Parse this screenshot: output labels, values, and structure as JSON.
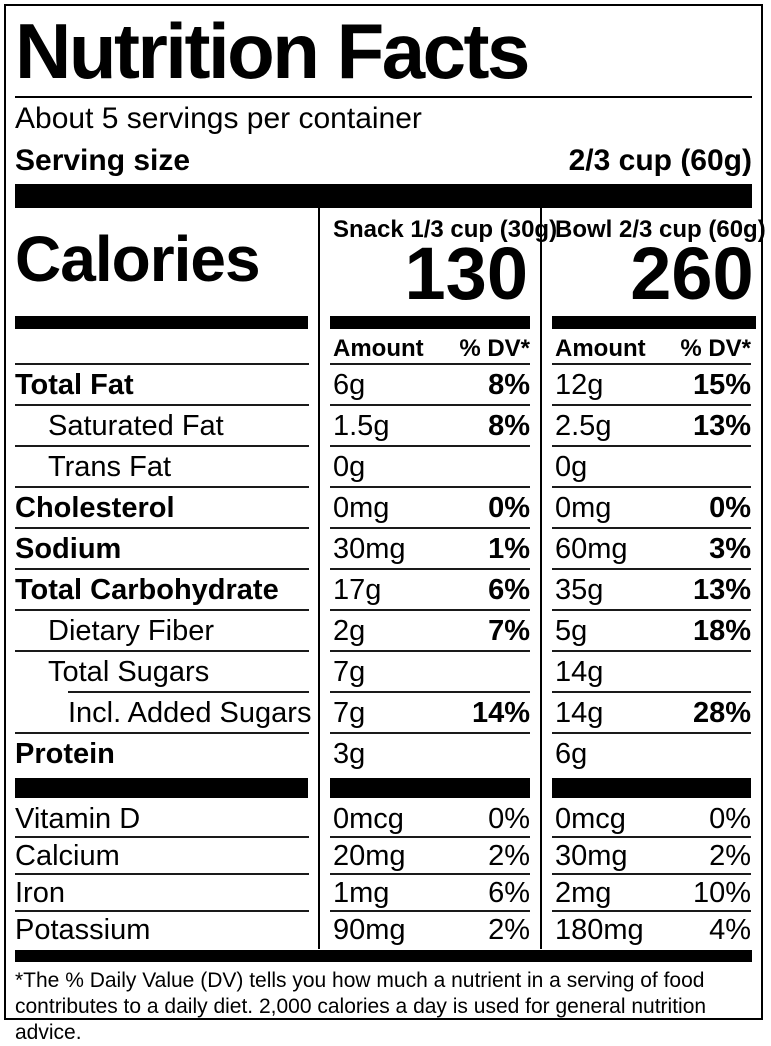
{
  "colors": {
    "text": "#000000",
    "background": "#ffffff",
    "bars": "#000000"
  },
  "header": {
    "title": "Nutrition Facts",
    "servings_per_container": "About 5 servings per container",
    "serving_size_label": "Serving size",
    "serving_size_value": "2/3 cup (60g)"
  },
  "calories": {
    "label": "Calories",
    "columns": [
      {
        "name": "Snack 1/3 cup (30g)",
        "value": "130"
      },
      {
        "name": "Bowl 2/3 cup (60g)",
        "value": "260"
      }
    ]
  },
  "table": {
    "amount_header": "Amount",
    "dv_header": "% DV*",
    "rows": [
      {
        "name": "Total Fat",
        "snack": {
          "amount": "6g",
          "dv": "8%"
        },
        "bowl": {
          "amount": "12g",
          "dv": "15%"
        }
      },
      {
        "name": "Saturated Fat",
        "snack": {
          "amount": "1.5g",
          "dv": "8%"
        },
        "bowl": {
          "amount": "2.5g",
          "dv": "13%"
        }
      },
      {
        "name": "Trans Fat",
        "snack": {
          "amount": "0g"
        },
        "bowl": {
          "amount": "0g"
        }
      },
      {
        "name": "Cholesterol",
        "snack": {
          "amount": "0mg",
          "dv": "0%"
        },
        "bowl": {
          "amount": "0mg",
          "dv": "0%"
        }
      },
      {
        "name": "Sodium",
        "snack": {
          "amount": "30mg",
          "dv": "1%"
        },
        "bowl": {
          "amount": "60mg",
          "dv": "3%"
        }
      },
      {
        "name": "Total Carbohydrate",
        "snack": {
          "amount": "17g",
          "dv": "6%"
        },
        "bowl": {
          "amount": "35g",
          "dv": "13%"
        }
      },
      {
        "name": "Dietary Fiber",
        "snack": {
          "amount": "2g",
          "dv": "7%"
        },
        "bowl": {
          "amount": "5g",
          "dv": "18%"
        }
      },
      {
        "name": "Total Sugars",
        "snack": {
          "amount": "7g"
        },
        "bowl": {
          "amount": "14g"
        }
      },
      {
        "name": "Incl. Added Sugars",
        "snack": {
          "amount": "7g",
          "dv": "14%"
        },
        "bowl": {
          "amount": "14g",
          "dv": "28%"
        }
      },
      {
        "name": "Protein",
        "snack": {
          "amount": "3g"
        },
        "bowl": {
          "amount": "6g"
        }
      }
    ],
    "vitamins": [
      {
        "name": "Vitamin D",
        "snack": {
          "amount": "0mcg",
          "dv": "0%"
        },
        "bowl": {
          "amount": "0mcg",
          "dv": "0%"
        }
      },
      {
        "name": "Calcium",
        "snack": {
          "amount": "20mg",
          "dv": "2%"
        },
        "bowl": {
          "amount": "30mg",
          "dv": "2%"
        }
      },
      {
        "name": "Iron",
        "snack": {
          "amount": "1mg",
          "dv": "6%"
        },
        "bowl": {
          "amount": "2mg",
          "dv": "10%"
        }
      },
      {
        "name": "Potassium",
        "snack": {
          "amount": "90mg",
          "dv": "2%"
        },
        "bowl": {
          "amount": "180mg",
          "dv": "4%"
        }
      }
    ]
  },
  "footnote": {
    "line1": "*The % Daily Value (DV) tells you how much a nutrient in a serving of food",
    "line2": "contributes to a daily diet. 2,000 calories a day is used for general nutrition advice."
  }
}
